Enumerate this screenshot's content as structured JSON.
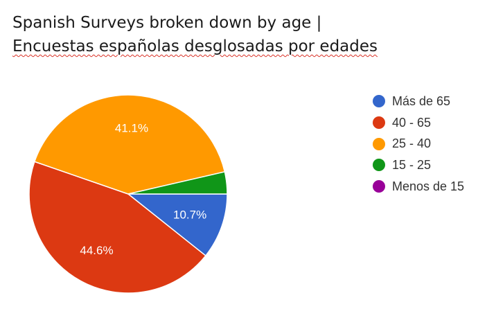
{
  "title": {
    "line1": "Spanish Surveys broken down by age |",
    "line2": "Encuestas españolas desglosadas por edades"
  },
  "chart_data": {
    "type": "pie",
    "categories": [
      "Más de 65",
      "40 - 65",
      "25 - 40",
      "15 - 25",
      "Menos de 15"
    ],
    "values": [
      10.7,
      44.6,
      41.1,
      3.6,
      0
    ],
    "colors": [
      "#3366cc",
      "#dc3912",
      "#ff9900",
      "#109618",
      "#990099"
    ],
    "labels": [
      "10.7%",
      "44.6%",
      "41.1%",
      "",
      ""
    ],
    "legend_position": "right"
  }
}
